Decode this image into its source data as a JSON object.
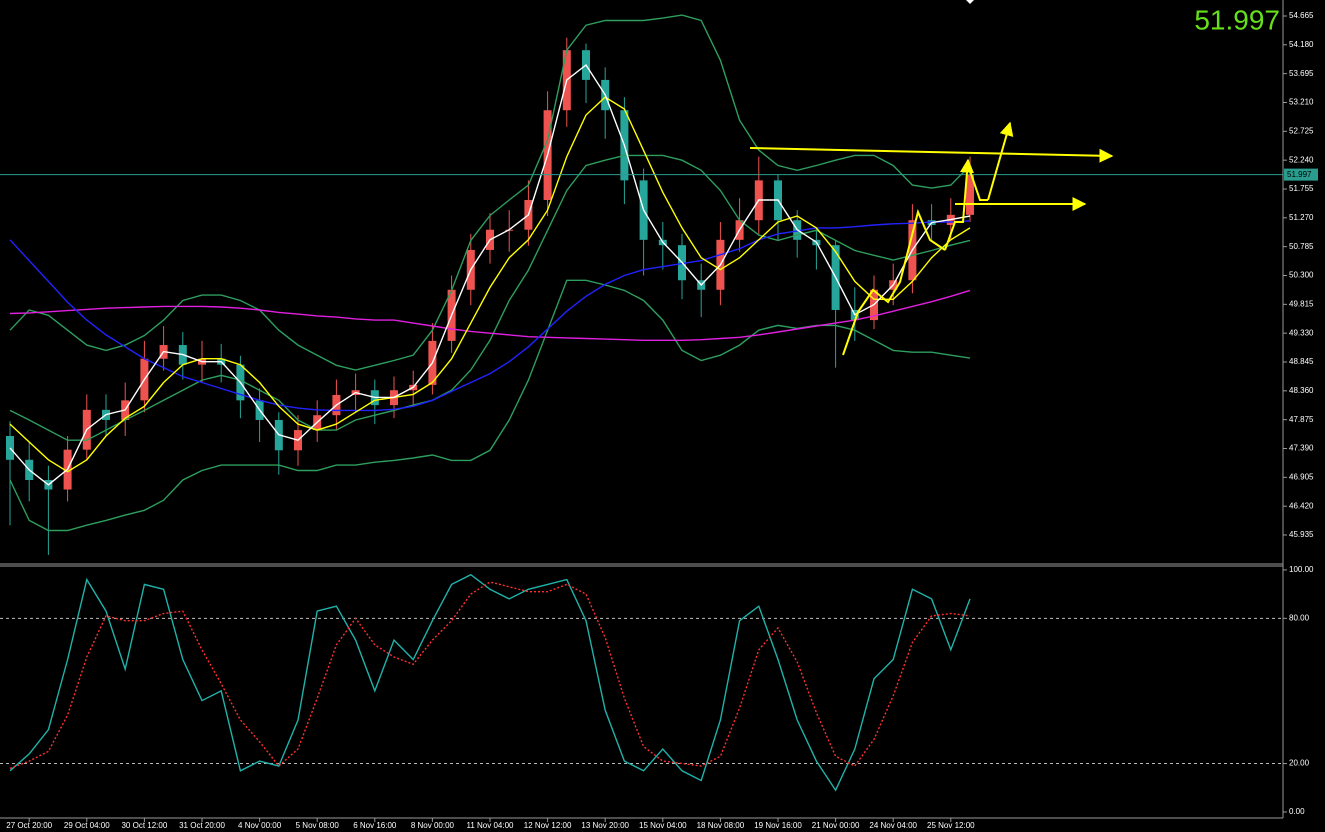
{
  "chart_data": [
    {
      "type": "candlestick",
      "ylim": [
        45.464,
        54.934
      ],
      "yticks": [
        54.665,
        {
          "value": 54.18,
          "label": "54.180"
        },
        53.695,
        {
          "value": 53.21,
          "label": "53.210"
        },
        52.725,
        {
          "value": 52.24,
          "label": "52.240"
        },
        51.755,
        {
          "value": 51.27,
          "label": "51.270"
        },
        50.785,
        {
          "value": 50.3,
          "label": "50.300"
        },
        49.815,
        {
          "value": 49.33,
          "label": "49.330"
        },
        48.845,
        {
          "value": 48.36,
          "label": "48.360"
        },
        47.875,
        {
          "value": 47.39,
          "label": "47.390"
        },
        46.905,
        {
          "value": 46.42,
          "label": "46.420"
        },
        45.935
      ],
      "open": [
        47.6,
        47.2,
        46.86,
        46.7,
        47.37,
        48.04,
        47.87,
        48.2,
        48.9,
        49.13,
        48.8,
        48.9,
        48.8,
        48.2,
        47.87,
        47.36,
        47.7,
        47.95,
        48.29,
        48.37,
        48.12,
        48.37,
        48.46,
        49.2,
        50.06,
        50.73,
        51.07,
        51.07,
        51.57,
        53.08,
        54.09,
        53.59,
        53.08,
        51.9,
        50.9,
        50.81,
        50.22,
        50.06,
        50.9,
        51.23,
        51.9,
        51.23,
        50.9,
        50.81,
        49.72,
        49.55,
        50.06,
        50.22,
        51.23,
        51.15,
        51.32
      ],
      "high": [
        47.85,
        47.5,
        47.1,
        47.6,
        48.3,
        48.3,
        48.5,
        49.2,
        49.45,
        49.35,
        49.2,
        49.15,
        48.95,
        48.4,
        48.0,
        47.95,
        48.2,
        48.55,
        48.65,
        48.55,
        48.6,
        48.7,
        49.5,
        50.3,
        51.0,
        51.35,
        51.4,
        51.9,
        53.4,
        54.3,
        54.2,
        53.8,
        53.3,
        52.1,
        51.2,
        51.0,
        50.5,
        51.2,
        51.6,
        52.3,
        52.0,
        51.4,
        51.1,
        50.9,
        50.1,
        50.3,
        50.5,
        51.5,
        51.5,
        51.6,
        52.3
      ],
      "low": [
        46.1,
        46.5,
        45.6,
        46.5,
        47.2,
        47.6,
        47.6,
        48.0,
        48.7,
        48.55,
        48.5,
        48.5,
        47.9,
        47.5,
        46.95,
        47.1,
        47.5,
        47.7,
        48.0,
        47.8,
        47.9,
        48.1,
        48.3,
        49.0,
        49.8,
        50.5,
        50.7,
        50.8,
        51.3,
        52.8,
        53.2,
        52.6,
        51.5,
        50.3,
        50.4,
        49.9,
        49.6,
        49.8,
        50.7,
        51.0,
        50.9,
        50.6,
        50.4,
        48.75,
        49.2,
        49.4,
        49.8,
        50.0,
        50.9,
        50.9,
        51.2
      ],
      "close": [
        47.2,
        46.86,
        46.7,
        47.37,
        48.04,
        47.87,
        48.2,
        48.9,
        49.13,
        48.8,
        48.9,
        48.8,
        48.2,
        47.87,
        47.36,
        47.7,
        47.95,
        48.29,
        48.37,
        48.12,
        48.37,
        48.46,
        49.2,
        50.06,
        50.73,
        51.07,
        51.07,
        51.57,
        53.08,
        54.09,
        53.59,
        53.08,
        51.9,
        50.9,
        50.81,
        50.22,
        50.06,
        50.9,
        51.23,
        51.9,
        51.23,
        50.9,
        50.81,
        49.72,
        49.55,
        50.06,
        50.22,
        51.23,
        51.15,
        51.32,
        51.997
      ],
      "up_color": "#ef5350",
      "down_color": "#26a69a",
      "series": [
        {
          "color": "#2e9e5e",
          "values": [
            49.38,
            49.72,
            49.63,
            49.38,
            49.13,
            49.04,
            49.13,
            49.29,
            49.55,
            49.88,
            49.97,
            49.97,
            49.88,
            49.72,
            49.38,
            49.13,
            48.96,
            48.79,
            48.71,
            48.79,
            48.87,
            48.96,
            49.38,
            50.05,
            50.89,
            51.31,
            51.57,
            51.82,
            52.58,
            54.09,
            54.51,
            54.59,
            54.59,
            54.59,
            54.63,
            54.68,
            54.59,
            53.92,
            52.91,
            52.41,
            52.15,
            52.07,
            52.15,
            52.24,
            52.32,
            52.32,
            52.15,
            51.82,
            51.77,
            51.82,
            52.15
          ]
        },
        {
          "color": "#2e9e5e",
          "values": [
            48.03,
            47.87,
            47.7,
            47.53,
            47.53,
            47.7,
            47.87,
            48.03,
            48.2,
            48.37,
            48.54,
            48.62,
            48.54,
            48.37,
            48.2,
            47.87,
            47.7,
            47.7,
            47.87,
            47.95,
            48.03,
            48.12,
            48.2,
            48.37,
            48.71,
            49.21,
            49.88,
            50.39,
            51.06,
            51.73,
            52.15,
            52.24,
            52.32,
            52.32,
            52.32,
            52.24,
            52.07,
            51.73,
            51.23,
            50.98,
            50.89,
            50.98,
            51.06,
            50.89,
            50.72,
            50.64,
            50.56,
            50.64,
            50.72,
            50.81,
            50.89
          ]
        },
        {
          "color": "#2e9e5e",
          "values": [
            46.86,
            46.18,
            46.01,
            46.01,
            46.1,
            46.18,
            46.27,
            46.35,
            46.52,
            46.86,
            47.02,
            47.11,
            47.11,
            47.11,
            47.11,
            47.02,
            47.02,
            47.11,
            47.11,
            47.16,
            47.19,
            47.23,
            47.28,
            47.19,
            47.19,
            47.36,
            47.87,
            48.54,
            49.38,
            50.22,
            50.22,
            50.14,
            50.05,
            49.88,
            49.55,
            49.04,
            48.87,
            48.96,
            49.13,
            49.38,
            49.46,
            49.41,
            49.46,
            49.46,
            49.38,
            49.21,
            49.04,
            49.01,
            49.01,
            48.96,
            48.91
          ]
        },
        {
          "color": "#e020e0",
          "values": [
            49.66,
            49.67,
            49.69,
            49.71,
            49.73,
            49.75,
            49.76,
            49.77,
            49.78,
            49.78,
            49.78,
            49.77,
            49.75,
            49.72,
            49.68,
            49.65,
            49.62,
            49.6,
            49.57,
            49.55,
            49.55,
            49.5,
            49.45,
            49.4,
            49.36,
            49.33,
            49.3,
            49.27,
            49.26,
            49.25,
            49.24,
            49.23,
            49.22,
            49.21,
            49.21,
            49.21,
            49.22,
            49.24,
            49.26,
            49.3,
            49.35,
            49.4,
            49.45,
            49.5,
            49.55,
            49.62,
            49.7,
            49.78,
            49.86,
            49.95,
            50.05
          ]
        },
        {
          "color": "#2222ff",
          "values": [
            50.9,
            50.55,
            50.2,
            49.85,
            49.55,
            49.3,
            49.1,
            48.9,
            48.75,
            48.6,
            48.5,
            48.4,
            48.3,
            48.2,
            48.12,
            48.07,
            48.04,
            48.03,
            48.03,
            48.03,
            48.05,
            48.1,
            48.2,
            48.35,
            48.5,
            48.65,
            48.85,
            49.1,
            49.4,
            49.7,
            49.95,
            50.15,
            50.3,
            50.4,
            50.45,
            50.5,
            50.55,
            50.65,
            50.75,
            50.9,
            51.0,
            51.05,
            51.1,
            51.1,
            51.12,
            51.15,
            51.17,
            51.18,
            51.2,
            51.2,
            51.22
          ]
        },
        {
          "color": "#ffff00",
          "values": [
            47.8,
            47.5,
            47.2,
            47.0,
            47.2,
            47.6,
            47.9,
            48.1,
            48.5,
            48.8,
            48.9,
            48.9,
            48.8,
            48.5,
            48.1,
            47.8,
            47.7,
            47.8,
            48.0,
            48.2,
            48.25,
            48.3,
            48.5,
            48.9,
            49.5,
            50.1,
            50.6,
            50.9,
            51.4,
            52.3,
            53.0,
            53.3,
            53.1,
            52.4,
            51.7,
            51.1,
            50.6,
            50.4,
            50.6,
            50.9,
            51.2,
            51.3,
            51.1,
            50.7,
            50.2,
            49.9,
            49.9,
            50.2,
            50.6,
            50.9,
            51.1
          ]
        },
        {
          "color": "#ffffff",
          "values": [
            47.4,
            47.03,
            46.78,
            47.04,
            47.71,
            47.96,
            48.04,
            48.55,
            49.02,
            48.97,
            48.85,
            48.85,
            48.5,
            48.04,
            47.62,
            47.53,
            47.83,
            48.12,
            48.33,
            48.25,
            48.25,
            48.42,
            48.83,
            49.63,
            50.4,
            50.9,
            51.07,
            51.32,
            52.33,
            53.59,
            53.84,
            53.34,
            52.49,
            51.4,
            50.86,
            50.52,
            50.14,
            50.48,
            51.07,
            51.57,
            51.57,
            51.07,
            50.86,
            50.27,
            49.64,
            49.81,
            50.14,
            50.73,
            51.19,
            51.24,
            51.3
          ]
        }
      ],
      "last_price": 51.997,
      "last_price_color": "#2a9d8f"
    },
    {
      "type": "line",
      "ylim": [
        -2.5,
        101.2
      ],
      "yticks": [
        {
          "value": 100,
          "label": "100.00"
        },
        {
          "value": 80,
          "label": "80.00"
        },
        {
          "value": 20,
          "label": "20.00"
        },
        {
          "value": 0,
          "label": "0.00"
        }
      ],
      "level_lines": [
        80,
        20
      ],
      "categories": [
        null,
        "27 Oct 20:00",
        null,
        null,
        "29 Oct 04:00",
        null,
        null,
        "30 Oct 12:00",
        null,
        null,
        "31 Oct 20:00",
        null,
        null,
        "4 Nov 00:00",
        null,
        null,
        "5 Nov 08:00",
        null,
        null,
        "6 Nov 16:00",
        null,
        null,
        "8 Nov 00:00",
        null,
        null,
        "11 Nov 04:00",
        null,
        null,
        "12 Nov 12:00",
        null,
        null,
        "13 Nov 20:00",
        null,
        null,
        "15 Nov 04:00",
        null,
        null,
        "18 Nov 08:00",
        null,
        null,
        "19 Nov 16:00",
        null,
        null,
        "21 Nov 00:00",
        null,
        null,
        "24 Nov 04:00",
        null,
        null,
        "25 Nov 12:00",
        null
      ],
      "series": [
        {
          "color": "#20b2aa",
          "values": [
            17,
            24,
            34,
            63,
            96,
            83,
            59,
            94,
            92,
            63,
            46,
            50,
            17,
            21,
            19,
            38,
            83,
            85,
            71,
            50,
            71,
            63,
            79,
            94,
            98,
            92,
            88,
            92,
            94,
            96,
            79,
            42,
            21,
            17,
            26,
            17,
            13,
            38,
            79,
            85,
            63,
            38,
            21,
            9,
            26,
            55,
            63,
            92,
            88,
            67,
            88
          ]
        },
        {
          "color": "#ff3030",
          "dashed": true,
          "values": [
            18,
            21,
            25,
            40,
            64,
            81,
            79,
            79,
            82,
            83,
            67,
            53,
            38,
            29,
            19,
            26,
            47,
            69,
            80,
            69,
            64,
            61,
            71,
            79,
            90,
            95,
            93,
            91,
            91,
            94,
            90,
            72,
            47,
            27,
            21,
            20,
            19,
            23,
            43,
            67,
            76,
            62,
            41,
            23,
            19,
            30,
            48,
            70,
            81,
            82,
            81
          ]
        }
      ]
    }
  ]
}
